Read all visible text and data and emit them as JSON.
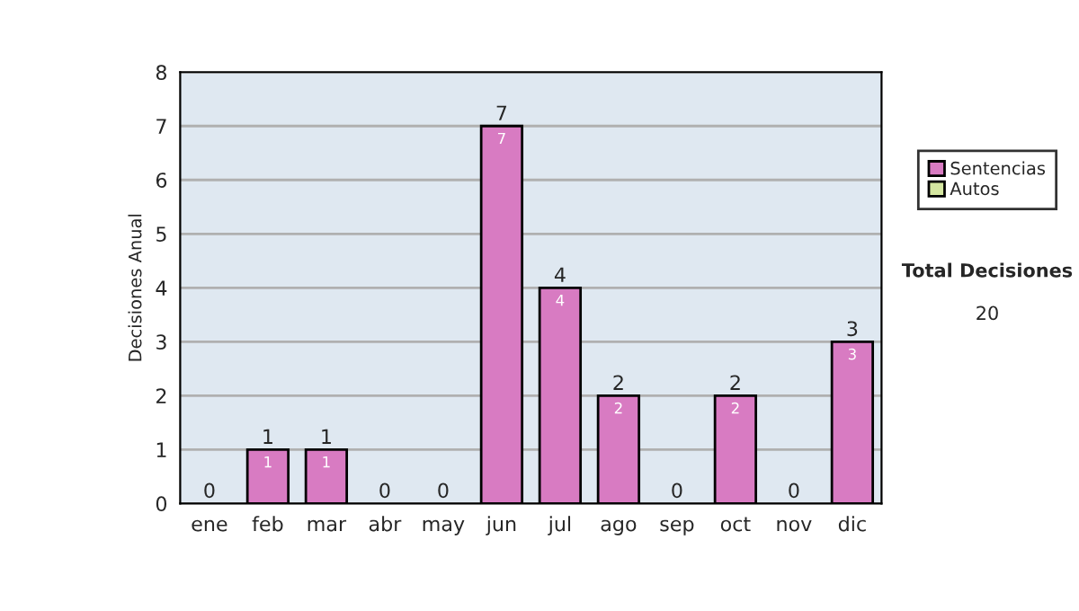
{
  "chart_data": {
    "type": "bar",
    "stacked": true,
    "ylabel": "Decisiones Anual",
    "categories": [
      "ene",
      "feb",
      "mar",
      "abr",
      "may",
      "jun",
      "jul",
      "ago",
      "sep",
      "oct",
      "nov",
      "dic"
    ],
    "series": [
      {
        "name": "Sentencias",
        "color": "#d87bc2",
        "values": [
          0,
          1,
          1,
          0,
          0,
          7,
          4,
          2,
          0,
          2,
          0,
          3
        ],
        "value_labels": [
          null,
          "1",
          "1",
          null,
          null,
          "7",
          "4",
          "2",
          null,
          "2",
          null,
          "3"
        ]
      },
      {
        "name": "Autos",
        "color": "#d4e6a0",
        "values": [
          0,
          0,
          0,
          0,
          0,
          0,
          0,
          0,
          0,
          0,
          0,
          0
        ]
      }
    ],
    "totals": [
      "0",
      "1",
      "1",
      "0",
      "0",
      "7",
      "4",
      "2",
      "0",
      "2",
      "0",
      "3"
    ],
    "ylim": [
      0,
      8
    ],
    "yticks": [
      0,
      1,
      2,
      3,
      4,
      5,
      6,
      7,
      8
    ],
    "grid": "y",
    "legend": "right",
    "annotations": [
      "Total Decisiones",
      "20"
    ]
  }
}
